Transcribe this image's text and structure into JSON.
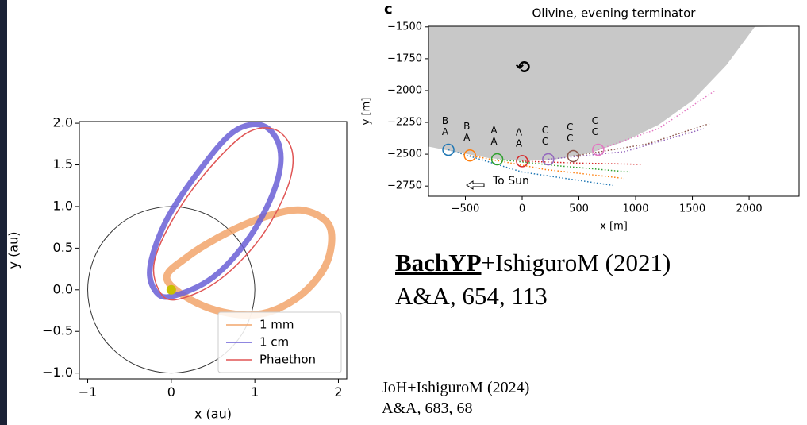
{
  "chart_data": [
    {
      "type": "orbit",
      "xlabel": "x (au)",
      "ylabel": "y (au)",
      "xlim": [
        -1.1,
        2.1
      ],
      "ylim": [
        -1.07,
        2.02
      ],
      "xticks": [
        {
          "value": -1,
          "label": "−1"
        },
        0,
        1,
        2
      ],
      "yticks": [
        {
          "value": 2,
          "label": "2.0"
        },
        {
          "value": 1.5,
          "label": "1.5"
        },
        {
          "value": 1,
          "label": "1.0"
        },
        {
          "value": 0.5,
          "label": "0.5"
        },
        {
          "value": 0,
          "label": "0.0"
        },
        {
          "value": -0.5,
          "label": "−0.5"
        },
        {
          "value": -1,
          "label": "−1.0"
        }
      ],
      "legend": "lower right",
      "sun": {
        "x": 0,
        "y": 0,
        "color": "#c8c000"
      },
      "earth": {
        "color": "#333333",
        "x": [
          1,
          0.866,
          0.5,
          0,
          -0.5,
          -0.866,
          -1,
          -0.866,
          -0.5,
          0,
          0.5,
          0.866
        ],
        "y": [
          0,
          0.5,
          0.866,
          1,
          0.866,
          0.5,
          0,
          -0.5,
          -0.866,
          -1,
          -0.866,
          -0.5
        ]
      },
      "series": [
        {
          "name": "1 mm",
          "color": "#f2a56b",
          "x": [
            -0.05,
            0.4,
            1.0,
            1.5,
            1.85,
            1.9,
            1.6,
            1.2,
            0.7,
            0.2
          ],
          "y": [
            0.12,
            -0.2,
            -0.3,
            -0.1,
            0.3,
            0.75,
            0.95,
            0.9,
            0.7,
            0.4
          ]
        },
        {
          "name": "1 cm",
          "color": "#6a5fd6",
          "x": [
            0.0,
            0.5,
            0.95,
            1.25,
            1.3,
            1.1,
            0.75,
            0.35,
            -0.05,
            -0.25,
            -0.2
          ],
          "y": [
            -0.08,
            0.15,
            0.65,
            1.25,
            1.7,
            1.97,
            1.9,
            1.45,
            0.85,
            0.3,
            0.0
          ]
        },
        {
          "name": "Phaethon",
          "color": "#e05555",
          "x": [
            0.05,
            0.55,
            1.05,
            1.38,
            1.45,
            1.25,
            0.9,
            0.45,
            0.05,
            -0.2,
            -0.15
          ],
          "y": [
            -0.12,
            0.1,
            0.6,
            1.2,
            1.65,
            1.92,
            1.88,
            1.45,
            0.9,
            0.35,
            0.0
          ]
        }
      ]
    },
    {
      "type": "scatter",
      "panel_label": "c",
      "title": "Olivine, evening terminator",
      "xlabel": "x [m]",
      "ylabel": "y [m]",
      "xlim": [
        -825,
        2440
      ],
      "ylim": [
        -2830,
        -1495
      ],
      "xticks": [
        {
          "value": -500,
          "label": "−500"
        },
        0,
        500,
        1000,
        1500,
        2000
      ],
      "yticks": [
        {
          "value": -1500,
          "label": "−1500"
        },
        {
          "value": -1750,
          "label": "−1750"
        },
        {
          "value": -2000,
          "label": "−2000"
        },
        {
          "value": -2250,
          "label": "−2250"
        },
        {
          "value": -2500,
          "label": "−2500"
        },
        {
          "value": -2750,
          "label": "−2750"
        }
      ],
      "annotations": {
        "rotation": "⟲",
        "sun": "To Sun"
      },
      "body": {
        "color": "#c8c8c8",
        "x": [
          -825,
          -600,
          -300,
          0,
          300,
          600,
          900,
          1200,
          1500,
          1800,
          2050
        ],
        "y": [
          -2440,
          -2480,
          -2530,
          -2555,
          -2540,
          -2490,
          -2400,
          -2270,
          -2080,
          -1800,
          -1500
        ]
      },
      "points": {
        "x": [
          -650,
          -460,
          -220,
          0,
          230,
          450,
          670
        ],
        "y": [
          -2465,
          -2510,
          -2540,
          -2555,
          -2540,
          -2515,
          -2465
        ],
        "colors": [
          "#1f77b4",
          "#ff7f0e",
          "#2ca02c",
          "#d62728",
          "#9467bd",
          "#8c564b",
          "#e377c2"
        ],
        "labels_top": [
          "B",
          "B",
          "A",
          "A",
          "C",
          "C",
          "C"
        ],
        "labels_bottom": [
          "A",
          "A",
          "A",
          "A",
          "C",
          "C",
          "C"
        ]
      },
      "trajectories": [
        {
          "color": "#1f77b4",
          "x": [
            -650,
            0,
            800
          ],
          "y": [
            -2465,
            -2640,
            -2745
          ]
        },
        {
          "color": "#ff7f0e",
          "x": [
            -460,
            200,
            900
          ],
          "y": [
            -2510,
            -2620,
            -2690
          ]
        },
        {
          "color": "#2ca02c",
          "x": [
            -220,
            300,
            950
          ],
          "y": [
            -2540,
            -2590,
            -2640
          ]
        },
        {
          "color": "#d62728",
          "x": [
            0,
            500,
            1050
          ],
          "y": [
            -2555,
            -2570,
            -2580
          ]
        },
        {
          "color": "#9467bd",
          "x": [
            230,
            900,
            1600
          ],
          "y": [
            -2540,
            -2480,
            -2300
          ]
        },
        {
          "color": "#8c564b",
          "x": [
            450,
            1100,
            1650
          ],
          "y": [
            -2515,
            -2420,
            -2260
          ]
        },
        {
          "color": "#e377c2",
          "x": [
            670,
            1200,
            1700
          ],
          "y": [
            -2465,
            -2300,
            -2000
          ]
        }
      ]
    }
  ],
  "citations": {
    "first": {
      "author": "BachYP",
      "rest": "+IshiguroM (2021)",
      "journal": "A&A, 654, 113"
    },
    "second": {
      "text": "JoH+IshiguroM (2024)",
      "journal": "A&A, 683, 68"
    }
  }
}
